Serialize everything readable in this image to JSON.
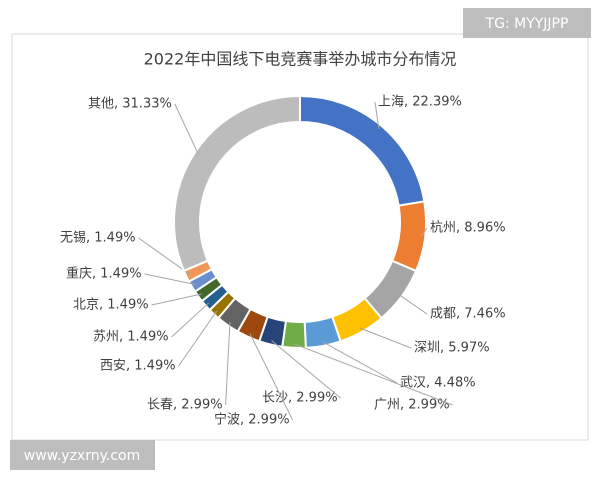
{
  "chart_data": {
    "type": "donut",
    "title": "2022年中国线下电竞赛事举办城市分布情况",
    "categories": [
      "上海",
      "杭州",
      "成都",
      "深圳",
      "武汉",
      "广州",
      "长沙",
      "宁波",
      "长春",
      "西安",
      "苏州",
      "北京",
      "重庆",
      "无锡",
      "其他"
    ],
    "values": [
      22.39,
      8.96,
      7.46,
      5.97,
      4.48,
      2.99,
      2.99,
      2.99,
      2.99,
      1.49,
      1.49,
      1.49,
      1.49,
      1.49,
      31.33
    ],
    "value_labels": [
      "上海, 22.39%",
      "杭州, 8.96%",
      "成都, 7.46%",
      "深圳, 5.97%",
      "武汉, 4.48%",
      "广州, 2.99%",
      "长沙, 2.99%",
      "宁波, 2.99%",
      "长春, 2.99%",
      "西安, 1.49%",
      "苏州, 1.49%",
      "北京, 1.49%",
      "重庆, 1.49%",
      "无锡, 1.49%",
      "其他, 31.33%"
    ],
    "colors": [
      "#4472c4",
      "#ed7d31",
      "#a5a5a5",
      "#ffc000",
      "#5b9bd5",
      "#70ad47",
      "#264478",
      "#9e480e",
      "#636363",
      "#997300",
      "#255e91",
      "#43682b",
      "#698ed0",
      "#f1975a",
      "#bcbcbc"
    ]
  },
  "watermarks": [
    "TG: MYYJJPP",
    "www.yzxrny.com"
  ]
}
